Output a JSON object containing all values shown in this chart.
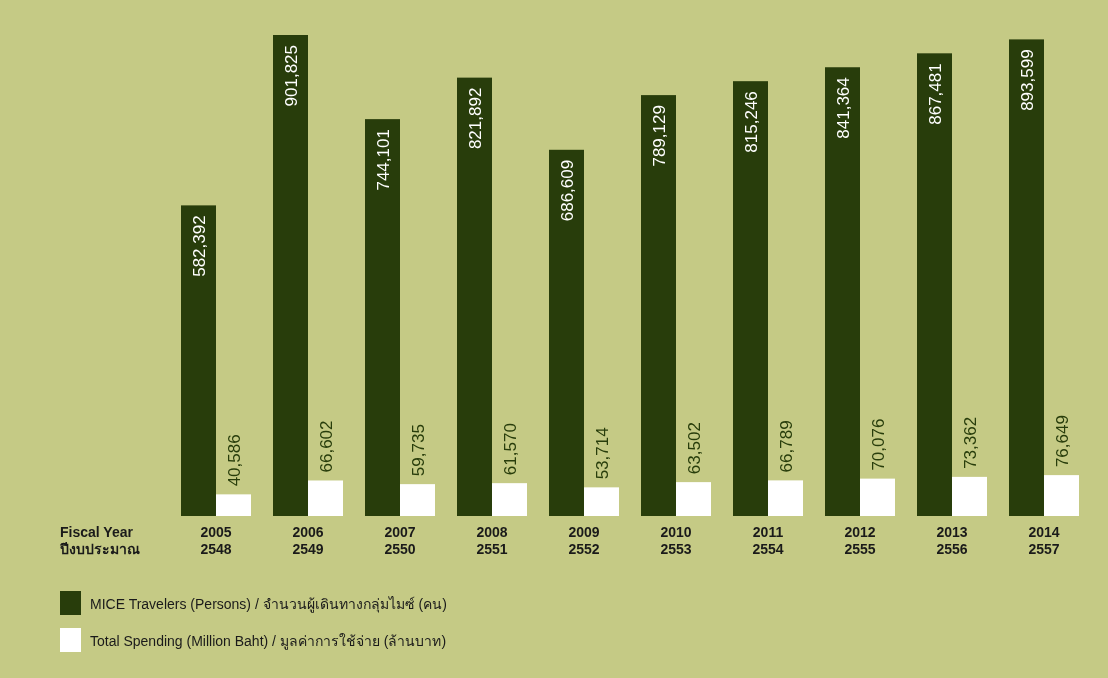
{
  "chart_data": {
    "type": "bar",
    "xlabel": "Fiscal Year\nปีงบประมาณ",
    "categories": [
      "2005\n2548",
      "2006\n2549",
      "2007\n2550",
      "2008\n2551",
      "2009\n2552",
      "2010\n2553",
      "2011\n2554",
      "2012\n2555",
      "2013\n2556",
      "2014\n2557"
    ],
    "series": [
      {
        "name": "MICE Travelers (Persons) / จำนวนผู้เดินทางกลุ่มไมซ์ (คน)",
        "color": "#283d0b",
        "values": [
          582392,
          901825,
          744101,
          821892,
          686609,
          789129,
          815246,
          841364,
          867481,
          893599
        ],
        "value_labels": [
          "582,392",
          "901,825",
          "744,101",
          "821,892",
          "686,609",
          "789,129",
          "815,246",
          "841,364",
          "867,481",
          "893,599"
        ]
      },
      {
        "name": "Total Spending (Million Baht) / มูลค่าการใช้จ่าย (ล้านบาท)",
        "color": "#ffffff",
        "values": [
          40586,
          66602,
          59735,
          61570,
          53714,
          63502,
          66789,
          70076,
          73362,
          76649
        ],
        "value_labels": [
          "40,586",
          "66,602",
          "59,735",
          "61,570",
          "53,714",
          "63,502",
          "66,789",
          "70,076",
          "73,362",
          "76,649"
        ]
      }
    ],
    "legend": "bottom left"
  }
}
